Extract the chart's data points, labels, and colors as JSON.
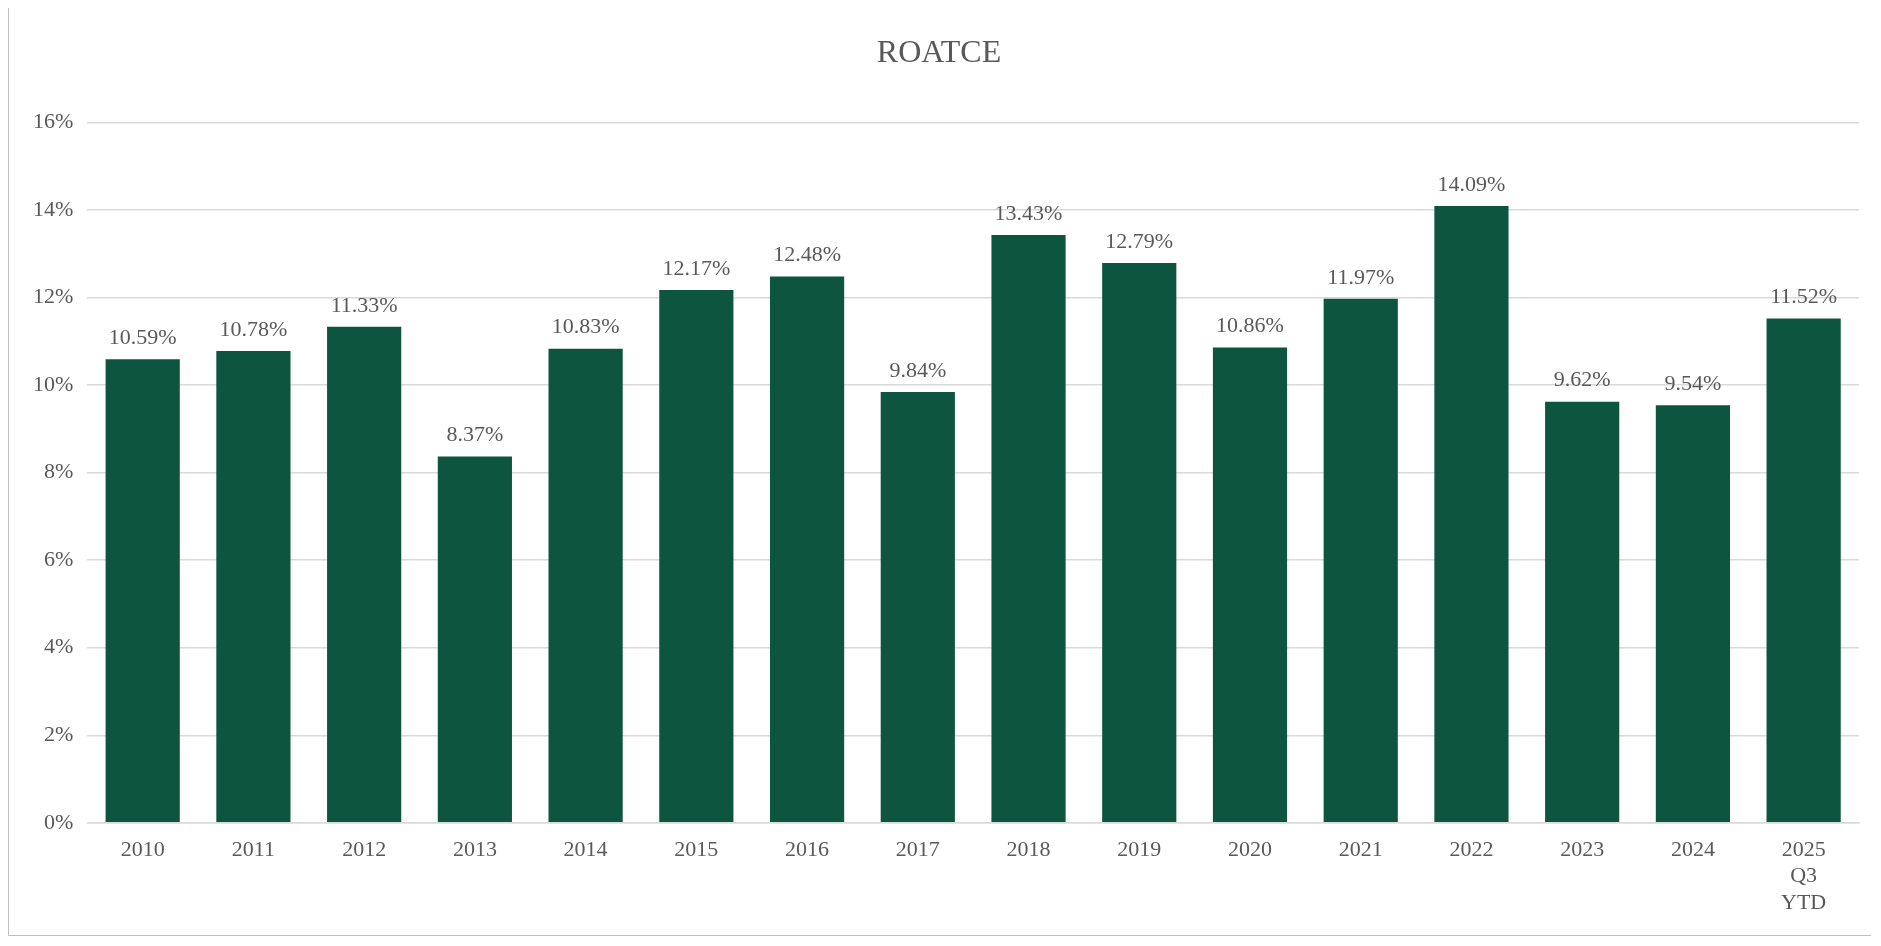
{
  "chart_data": {
    "type": "bar",
    "title": "ROATCE",
    "categories": [
      "2010",
      "2011",
      "2012",
      "2013",
      "2014",
      "2015",
      "2016",
      "2017",
      "2018",
      "2019",
      "2020",
      "2021",
      "2022",
      "2023",
      "2024",
      "2025 Q3 YTD"
    ],
    "values": [
      10.59,
      10.78,
      11.33,
      8.37,
      10.83,
      12.17,
      12.48,
      9.84,
      13.43,
      12.79,
      10.86,
      11.97,
      14.09,
      9.62,
      9.54,
      11.52
    ],
    "value_labels": [
      "10.59%",
      "10.78%",
      "11.33%",
      "8.37%",
      "10.83%",
      "12.17%",
      "12.48%",
      "9.84%",
      "13.43%",
      "12.79%",
      "10.86%",
      "11.97%",
      "14.09%",
      "9.62%",
      "9.54%",
      "11.52%"
    ],
    "color": "#0e5540",
    "ylim": [
      0,
      16
    ],
    "yticks": [
      {
        "value": 0,
        "label": "0%"
      },
      {
        "value": 2,
        "label": "2%"
      },
      {
        "value": 4,
        "label": "4%"
      },
      {
        "value": 6,
        "label": "6%"
      },
      {
        "value": 8,
        "label": "8%"
      },
      {
        "value": 10,
        "label": "10%"
      },
      {
        "value": 12,
        "label": "12%"
      },
      {
        "value": 14,
        "label": "14%"
      },
      {
        "value": 16,
        "label": "16%"
      }
    ],
    "grid": "y",
    "legend": false
  }
}
